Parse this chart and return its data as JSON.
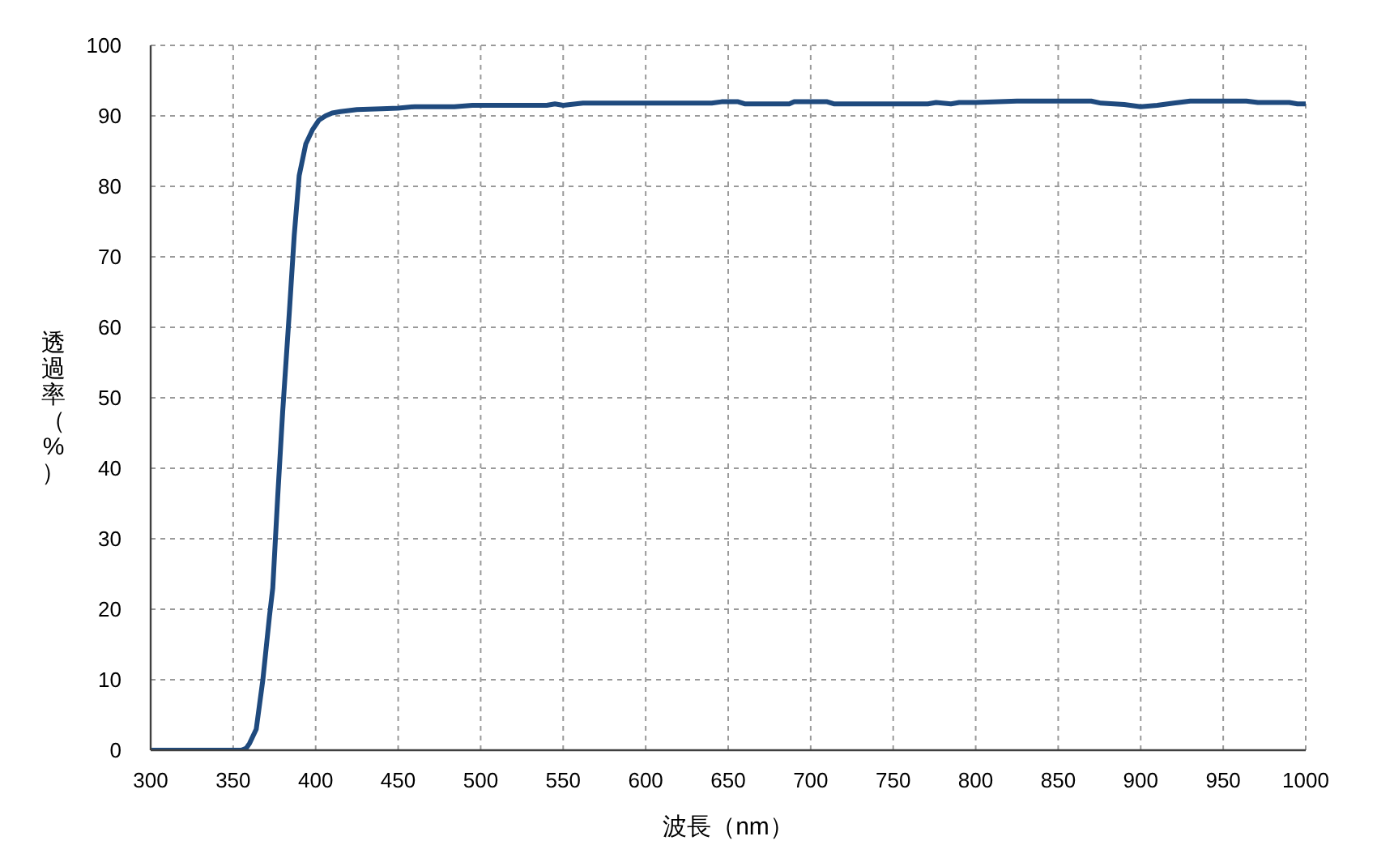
{
  "chart_data": {
    "type": "line",
    "xlabel": "波長（nm）",
    "ylabel": "透過率（%）",
    "x": [
      300,
      350,
      355,
      358,
      360,
      364,
      368,
      372,
      374,
      377,
      380,
      384,
      387,
      390,
      394,
      398,
      402,
      406,
      410,
      415,
      425,
      440,
      450,
      460,
      475,
      484,
      495,
      540,
      545,
      550,
      562,
      640,
      646,
      656,
      660,
      687,
      690,
      710,
      714,
      771,
      776,
      785,
      790,
      800,
      825,
      870,
      876,
      890,
      900,
      910,
      920,
      930,
      964,
      971,
      990,
      995,
      1000
    ],
    "series": [
      {
        "color": "#1f4a7e",
        "values": [
          0,
          0,
          0,
          0.3,
          1,
          3,
          10,
          19,
          23,
          36,
          48,
          62,
          73,
          81.5,
          86,
          88,
          89.4,
          90,
          90.4,
          90.6,
          90.9,
          91,
          91.1,
          91.3,
          91.3,
          91.3,
          91.5,
          91.5,
          91.7,
          91.5,
          91.8,
          91.8,
          92,
          92,
          91.7,
          91.7,
          92,
          92,
          91.7,
          91.7,
          91.9,
          91.7,
          91.9,
          91.9,
          92.1,
          92.1,
          91.8,
          91.6,
          91.3,
          91.5,
          91.8,
          92.1,
          92.1,
          91.9,
          91.9,
          91.7,
          91.7
        ]
      }
    ],
    "xlim": [
      300,
      1000
    ],
    "xticks": [
      300,
      350,
      400,
      450,
      500,
      550,
      600,
      650,
      700,
      750,
      800,
      850,
      900,
      950,
      1000
    ],
    "ylim": [
      0,
      100
    ],
    "yticks": [
      0,
      10,
      20,
      30,
      40,
      50,
      60,
      70,
      80,
      90,
      100
    ],
    "grid": true,
    "marker": "none",
    "line_style": "solid"
  }
}
